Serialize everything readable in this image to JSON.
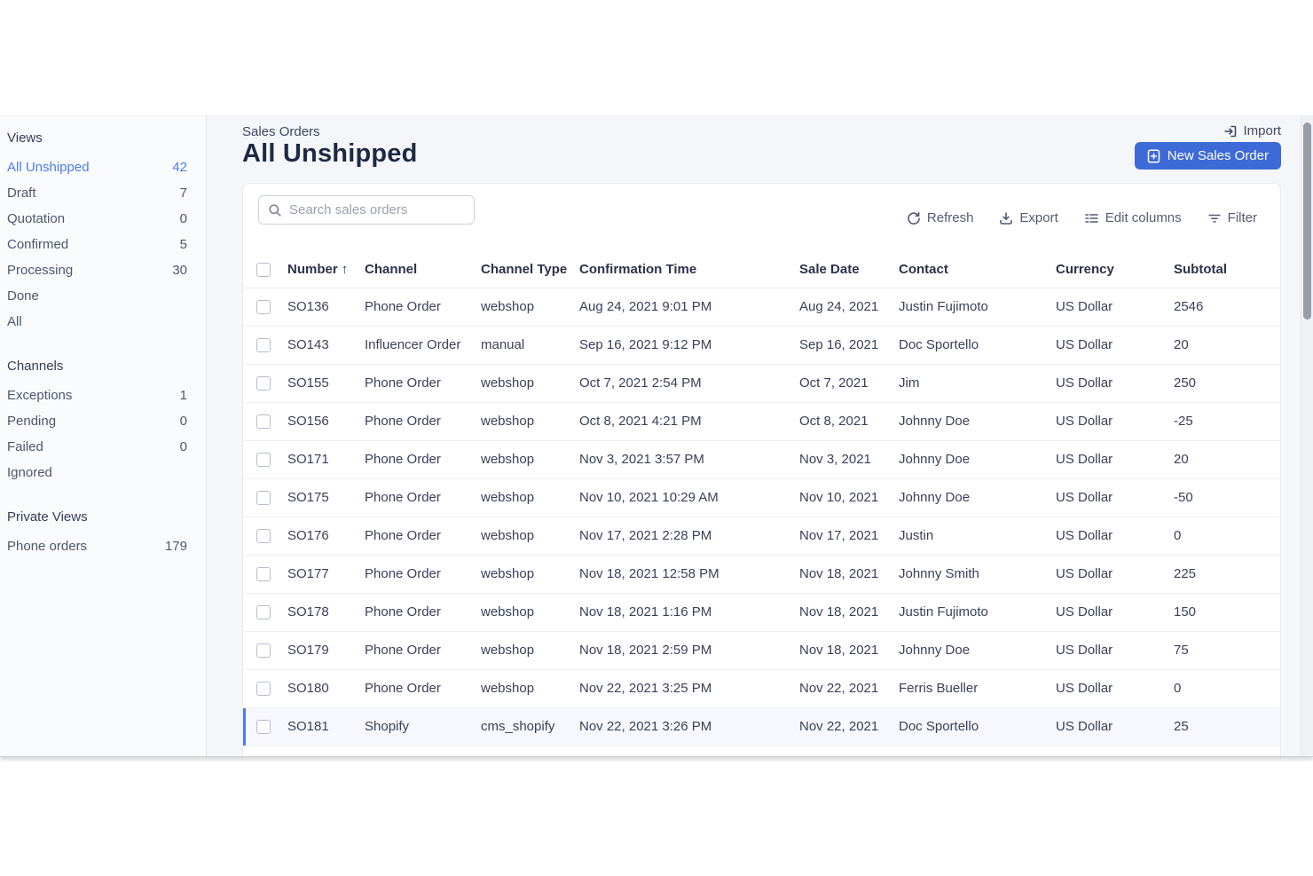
{
  "colors": {
    "accent_blue": "#3e6ad8",
    "link_blue": "#4c7ce8",
    "title_text": "#1f2944",
    "body_text": "#39415a",
    "card_background": "#ffffff",
    "page_background": "#f5f6f9",
    "highlight_row_background": "#f7f8fd"
  },
  "icons": {
    "import": "arrow-into-box",
    "new_sales_order": "document-plus",
    "search": "magnifying-glass",
    "refresh": "circular-arrow",
    "export": "arrow-down-into-tray",
    "edit_columns": "list-rows",
    "filter": "filter-lines",
    "sort_ascending": "up-arrow"
  },
  "sidebar": {
    "sections": [
      {
        "title": "Views",
        "items": [
          {
            "label": "All Unshipped",
            "count": "42",
            "active": true
          },
          {
            "label": "Draft",
            "count": "7",
            "active": false
          },
          {
            "label": "Quotation",
            "count": "0",
            "active": false
          },
          {
            "label": "Confirmed",
            "count": "5",
            "active": false
          },
          {
            "label": "Processing",
            "count": "30",
            "active": false
          },
          {
            "label": "Done",
            "count": "",
            "active": false
          },
          {
            "label": "All",
            "count": "",
            "active": false
          }
        ]
      },
      {
        "title": "Channels",
        "items": [
          {
            "label": "Exceptions",
            "count": "1",
            "active": false
          },
          {
            "label": "Pending",
            "count": "0",
            "active": false
          },
          {
            "label": "Failed",
            "count": "0",
            "active": false
          },
          {
            "label": "Ignored",
            "count": "",
            "active": false
          }
        ]
      },
      {
        "title": "Private Views",
        "items": [
          {
            "label": "Phone orders",
            "count": "179",
            "active": false
          }
        ]
      }
    ]
  },
  "header": {
    "breadcrumb": "Sales Orders",
    "title": "All Unshipped",
    "import_label": "Import",
    "new_button_label": "New Sales Order"
  },
  "toolbar": {
    "search_placeholder": "Search sales orders",
    "refresh_label": "Refresh",
    "export_label": "Export",
    "edit_columns_label": "Edit columns",
    "filter_label": "Filter"
  },
  "table": {
    "columns": [
      "Number",
      "Channel",
      "Channel Type",
      "Confirmation Time",
      "Sale Date",
      "Contact",
      "Currency",
      "Subtotal"
    ],
    "sort_column": "Number",
    "sort_direction": "ascending",
    "sort_indicator": "↑",
    "rows": [
      {
        "number": "SO136",
        "channel": "Phone Order",
        "channel_type": "webshop",
        "confirmation_time": "Aug 24, 2021 9:01 PM",
        "sale_date": "Aug 24, 2021",
        "contact": "Justin Fujimoto",
        "currency": "US Dollar",
        "subtotal": "2546",
        "highlighted": false
      },
      {
        "number": "SO143",
        "channel": "Influencer Order",
        "channel_type": "manual",
        "confirmation_time": "Sep 16, 2021 9:12 PM",
        "sale_date": "Sep 16, 2021",
        "contact": "Doc Sportello",
        "currency": "US Dollar",
        "subtotal": "20",
        "highlighted": false
      },
      {
        "number": "SO155",
        "channel": "Phone Order",
        "channel_type": "webshop",
        "confirmation_time": "Oct 7, 2021 2:54 PM",
        "sale_date": "Oct 7, 2021",
        "contact": "Jim",
        "currency": "US Dollar",
        "subtotal": "250",
        "highlighted": false
      },
      {
        "number": "SO156",
        "channel": "Phone Order",
        "channel_type": "webshop",
        "confirmation_time": "Oct 8, 2021 4:21 PM",
        "sale_date": "Oct 8, 2021",
        "contact": "Johnny Doe",
        "currency": "US Dollar",
        "subtotal": "-25",
        "highlighted": false
      },
      {
        "number": "SO171",
        "channel": "Phone Order",
        "channel_type": "webshop",
        "confirmation_time": "Nov 3, 2021 3:57 PM",
        "sale_date": "Nov 3, 2021",
        "contact": "Johnny Doe",
        "currency": "US Dollar",
        "subtotal": "20",
        "highlighted": false
      },
      {
        "number": "SO175",
        "channel": "Phone Order",
        "channel_type": "webshop",
        "confirmation_time": "Nov 10, 2021 10:29 AM",
        "sale_date": "Nov 10, 2021",
        "contact": "Johnny Doe",
        "currency": "US Dollar",
        "subtotal": "-50",
        "highlighted": false
      },
      {
        "number": "SO176",
        "channel": "Phone Order",
        "channel_type": "webshop",
        "confirmation_time": "Nov 17, 2021 2:28 PM",
        "sale_date": "Nov 17, 2021",
        "contact": "Justin",
        "currency": "US Dollar",
        "subtotal": "0",
        "highlighted": false
      },
      {
        "number": "SO177",
        "channel": "Phone Order",
        "channel_type": "webshop",
        "confirmation_time": "Nov 18, 2021 12:58 PM",
        "sale_date": "Nov 18, 2021",
        "contact": "Johnny Smith",
        "currency": "US Dollar",
        "subtotal": "225",
        "highlighted": false
      },
      {
        "number": "SO178",
        "channel": "Phone Order",
        "channel_type": "webshop",
        "confirmation_time": "Nov 18, 2021 1:16 PM",
        "sale_date": "Nov 18, 2021",
        "contact": "Justin Fujimoto",
        "currency": "US Dollar",
        "subtotal": "150",
        "highlighted": false
      },
      {
        "number": "SO179",
        "channel": "Phone Order",
        "channel_type": "webshop",
        "confirmation_time": "Nov 18, 2021 2:59 PM",
        "sale_date": "Nov 18, 2021",
        "contact": "Johnny Doe",
        "currency": "US Dollar",
        "subtotal": "75",
        "highlighted": false
      },
      {
        "number": "SO180",
        "channel": "Phone Order",
        "channel_type": "webshop",
        "confirmation_time": "Nov 22, 2021 3:25 PM",
        "sale_date": "Nov 22, 2021",
        "contact": "Ferris Bueller",
        "currency": "US Dollar",
        "subtotal": "0",
        "highlighted": false
      },
      {
        "number": "SO181",
        "channel": "Shopify",
        "channel_type": "cms_shopify",
        "confirmation_time": "Nov 22, 2021 3:26 PM",
        "sale_date": "Nov 22, 2021",
        "contact": "Doc Sportello",
        "currency": "US Dollar",
        "subtotal": "25",
        "highlighted": true
      }
    ]
  }
}
